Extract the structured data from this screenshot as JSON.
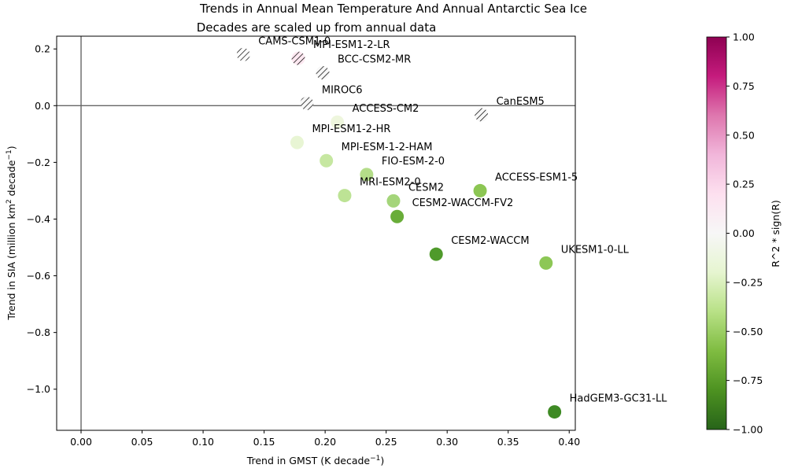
{
  "chart_data": {
    "type": "scatter",
    "title": "Trends in Annual Mean Temperature And Annual Antarctic Sea Ice",
    "subtitle": "Decades are scaled up from annual data",
    "xlabel": "Trend in GMST (K decade",
    "xlabel_sup": "−1",
    "xlabel_end": ")",
    "ylabel": "Trend in SIA (million km",
    "ylabel_sup2": "2",
    "ylabel_mid": " decade",
    "ylabel_sup": "−1",
    "ylabel_end": ")",
    "xlim": [
      -0.02,
      0.405
    ],
    "ylim": [
      -1.145,
      0.245
    ],
    "xticks": [
      {
        "value": 0.0,
        "label": "0.00"
      },
      {
        "value": 0.05,
        "label": "0.05"
      },
      {
        "value": 0.1,
        "label": "0.10"
      },
      {
        "value": 0.15,
        "label": "0.15"
      },
      {
        "value": 0.2,
        "label": "0.20"
      },
      {
        "value": 0.25,
        "label": "0.25"
      },
      {
        "value": 0.3,
        "label": "0.30"
      },
      {
        "value": 0.35,
        "label": "0.35"
      },
      {
        "value": 0.4,
        "label": "0.40"
      }
    ],
    "yticks": [
      {
        "value": 0.2,
        "label": "0.2"
      },
      {
        "value": 0.0,
        "label": "0.0"
      },
      {
        "value": -0.2,
        "label": "−0.2"
      },
      {
        "value": -0.4,
        "label": "−0.4"
      },
      {
        "value": -0.6,
        "label": "−0.6"
      },
      {
        "value": -0.8,
        "label": "−0.8"
      },
      {
        "value": -1.0,
        "label": "−1.0"
      }
    ],
    "reference_lines": {
      "x": 0.0,
      "y": 0.0
    },
    "colorbar": {
      "label": "R^2 * sign(R)",
      "range": [
        -1.0,
        1.0
      ],
      "colormap": "PiYG",
      "ticks": [
        {
          "value": 1.0,
          "label": "1.00"
        },
        {
          "value": 0.75,
          "label": "0.75"
        },
        {
          "value": 0.5,
          "label": "0.50"
        },
        {
          "value": 0.25,
          "label": "0.25"
        },
        {
          "value": 0.0,
          "label": "0.00"
        },
        {
          "value": -0.25,
          "label": "−0.25"
        },
        {
          "value": -0.5,
          "label": "−0.50"
        },
        {
          "value": -0.75,
          "label": "−0.75"
        },
        {
          "value": -1.0,
          "label": "−1.00"
        }
      ]
    },
    "points": [
      {
        "label": "CAMS-CSM1-0",
        "x": 0.133,
        "y": 0.18,
        "color": "#ffffff",
        "hatched": true
      },
      {
        "label": "MPI-ESM1-2-LR",
        "x": 0.178,
        "y": 0.167,
        "color": "#fde8f1",
        "hatched": true
      },
      {
        "label": "BCC-CSM2-MR",
        "x": 0.198,
        "y": 0.116,
        "color": "#f7f7f7",
        "hatched": true
      },
      {
        "label": "MIROC6",
        "x": 0.185,
        "y": 0.008,
        "color": "#f7f7f7",
        "hatched": true
      },
      {
        "label": "CanESM5",
        "x": 0.328,
        "y": -0.032,
        "color": "#f7f7f7",
        "hatched": true
      },
      {
        "label": "ACCESS-CM2",
        "x": 0.21,
        "y": -0.058,
        "color": "#eef6dd",
        "hatched": false
      },
      {
        "label": "MPI-ESM1-2-HR",
        "x": 0.177,
        "y": -0.13,
        "color": "#e8f5d4",
        "hatched": false
      },
      {
        "label": "MPI-ESM-1-2-HAM",
        "x": 0.201,
        "y": -0.194,
        "color": "#c6e7a1",
        "hatched": false
      },
      {
        "label": "FIO-ESM-2-0",
        "x": 0.234,
        "y": -0.243,
        "color": "#b4dd89",
        "hatched": false
      },
      {
        "label": "MRI-ESM2-0",
        "x": 0.216,
        "y": -0.317,
        "color": "#bde395",
        "hatched": false
      },
      {
        "label": "ACCESS-ESM1-5",
        "x": 0.327,
        "y": -0.3,
        "color": "#8cc653",
        "hatched": false
      },
      {
        "label": "CESM2",
        "x": 0.256,
        "y": -0.336,
        "color": "#a4d57a",
        "hatched": false
      },
      {
        "label": "CESM2-WACCM-FV2",
        "x": 0.259,
        "y": -0.391,
        "color": "#69ad39",
        "hatched": false
      },
      {
        "label": "CESM2-WACCM",
        "x": 0.291,
        "y": -0.524,
        "color": "#4f9a2b",
        "hatched": false
      },
      {
        "label": "UKESM1-0-LL",
        "x": 0.381,
        "y": -0.555,
        "color": "#8dc756",
        "hatched": false
      },
      {
        "label": "HadGEM3-GC31-LL",
        "x": 0.388,
        "y": -1.08,
        "color": "#3e8a24",
        "hatched": false
      }
    ]
  }
}
